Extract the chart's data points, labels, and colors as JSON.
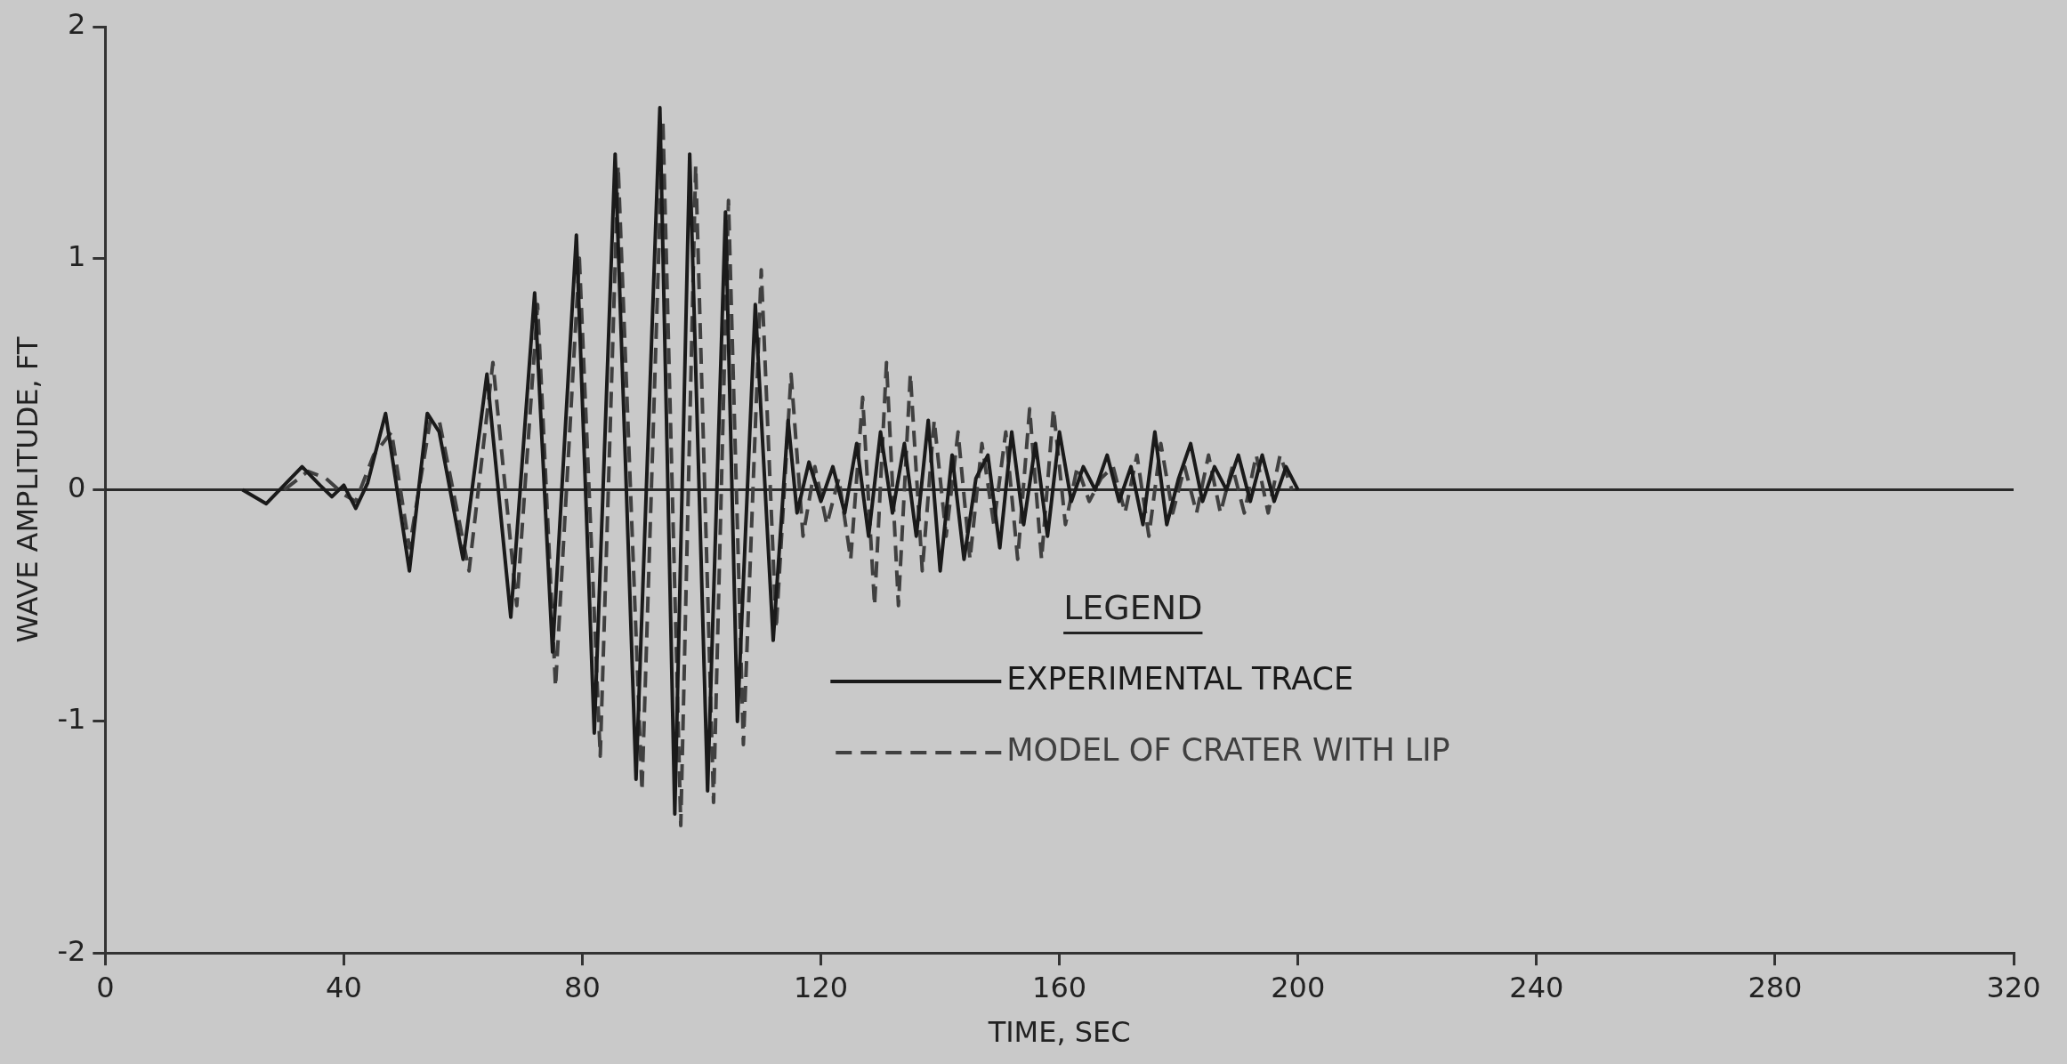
{
  "chart_data": {
    "type": "line",
    "xlabel": "TIME, SEC",
    "ylabel": "WAVE AMPLITUDE, FT",
    "legend_title": "LEGEND",
    "legend": "bottom",
    "marker": "none",
    "grid": false,
    "xlim": [
      0,
      320
    ],
    "xticks": [
      0,
      40,
      80,
      120,
      160,
      200,
      240,
      280,
      320
    ],
    "ylim": [
      -2,
      2
    ],
    "yticks": [
      -2,
      -1,
      0,
      1,
      2
    ],
    "ref_lines": [
      {
        "axis": "y",
        "value": 0,
        "color": "#2a2a2a"
      }
    ],
    "series": [
      {
        "name": "EXPERIMENTAL TRACE",
        "color": "#1a1a1a",
        "line_style": "solid",
        "x": [
          23,
          27,
          33,
          36,
          38,
          40,
          42,
          44,
          47,
          51,
          54,
          56,
          60,
          64,
          68,
          72,
          75,
          79,
          82,
          85.5,
          89,
          93,
          95.5,
          98,
          101,
          104,
          106,
          109,
          112,
          114.5,
          116,
          118,
          120,
          122,
          124,
          126,
          128,
          130,
          132,
          134,
          136,
          138,
          140,
          142,
          144,
          146,
          148,
          150,
          152,
          154,
          156,
          158,
          160,
          162,
          164,
          166,
          168,
          170,
          172,
          174,
          176,
          178,
          180,
          182,
          184,
          186,
          188,
          190,
          192,
          194,
          196,
          198,
          200
        ],
        "values": [
          0,
          -0.06,
          0.1,
          0.02,
          -0.03,
          0.02,
          -0.08,
          0.03,
          0.33,
          -0.35,
          0.33,
          0.25,
          -0.3,
          0.5,
          -0.55,
          0.85,
          -0.7,
          1.1,
          -1.05,
          1.45,
          -1.25,
          1.65,
          -1.4,
          1.45,
          -1.3,
          1.2,
          -1.0,
          0.8,
          -0.65,
          0.3,
          -0.1,
          0.12,
          -0.05,
          0.1,
          -0.1,
          0.2,
          -0.2,
          0.25,
          -0.1,
          0.2,
          -0.2,
          0.3,
          -0.35,
          0.15,
          -0.3,
          0.05,
          0.15,
          -0.25,
          0.25,
          -0.15,
          0.2,
          -0.2,
          0.25,
          -0.05,
          0.1,
          0,
          0.15,
          -0.05,
          0.1,
          -0.15,
          0.25,
          -0.15,
          0.05,
          0.2,
          -0.05,
          0.1,
          0,
          0.15,
          -0.05,
          0.15,
          -0.05,
          0.1,
          0
        ]
      },
      {
        "name": "MODEL OF CRATER WITH LIP",
        "color": "#404040",
        "line_style": "dashed",
        "x": [
          30,
          34,
          37,
          40,
          42,
          45,
          48,
          51,
          54.5,
          56,
          61,
          65,
          69,
          72.5,
          75.5,
          79.5,
          83,
          86,
          90,
          93.5,
          96.5,
          99,
          102,
          104.5,
          107,
          110,
          112.5,
          115,
          117,
          119,
          121,
          123,
          125,
          127,
          129,
          131,
          133,
          135,
          137,
          139,
          141,
          143,
          145,
          147,
          149,
          151,
          153,
          155,
          157,
          159,
          161,
          163,
          165,
          167,
          169,
          171,
          173,
          175,
          177,
          179,
          181,
          183,
          185,
          187,
          189,
          191,
          193,
          195,
          197,
          199
        ],
        "values": [
          0,
          0.08,
          0.05,
          -0.02,
          -0.05,
          0.15,
          0.25,
          -0.25,
          0.3,
          0.3,
          -0.35,
          0.55,
          -0.5,
          0.8,
          -0.85,
          1.0,
          -1.15,
          1.4,
          -1.3,
          1.6,
          -1.45,
          1.4,
          -1.35,
          1.25,
          -1.1,
          0.95,
          -0.6,
          0.5,
          -0.2,
          0.1,
          -0.15,
          0.05,
          -0.3,
          0.4,
          -0.5,
          0.55,
          -0.5,
          0.5,
          -0.35,
          0.3,
          -0.2,
          0.25,
          -0.3,
          0.2,
          -0.15,
          0.25,
          -0.3,
          0.35,
          -0.3,
          0.35,
          -0.15,
          0.1,
          -0.05,
          0.05,
          0.1,
          -0.1,
          0.15,
          -0.2,
          0.2,
          -0.1,
          0.1,
          -0.1,
          0.15,
          -0.1,
          0.1,
          -0.1,
          0.15,
          -0.1,
          0.15,
          0
        ]
      }
    ]
  }
}
